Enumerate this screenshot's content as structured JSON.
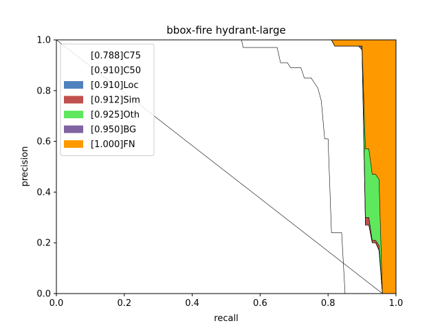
{
  "chart_data": {
    "type": "area",
    "title": "bbox-fire hydrant-large",
    "xlabel": "recall",
    "ylabel": "precision",
    "xlim": [
      0,
      1
    ],
    "ylim": [
      0,
      1
    ],
    "xticks": [
      "0.0",
      "0.2",
      "0.4",
      "0.6",
      "0.8",
      "1.0"
    ],
    "yticks": [
      "0.0",
      "0.2",
      "0.4",
      "0.6",
      "0.8",
      "1.0"
    ],
    "grid": false,
    "legend_position": "top-left",
    "legend": [
      {
        "label": "[0.788]C75",
        "color": "#ffffff",
        "swatch": false
      },
      {
        "label": "[0.910]C50",
        "color": "#ffffff",
        "swatch": false
      },
      {
        "label": "[0.910]Loc",
        "color": "#4f81bd",
        "swatch": true
      },
      {
        "label": "[0.912]Sim",
        "color": "#c0504d",
        "swatch": true
      },
      {
        "label": "[0.925]Oth",
        "color": "#5ee85e",
        "swatch": true
      },
      {
        "label": "[0.950]BG",
        "color": "#8064a2",
        "swatch": true
      },
      {
        "label": "[1.000]FN",
        "color": "#ff9900",
        "swatch": true
      }
    ],
    "series": [
      {
        "name": "[0.788]C75",
        "x": [
          0.0,
          0.545,
          0.55,
          0.65,
          0.66,
          0.68,
          0.69,
          0.72,
          0.73,
          0.75,
          0.76,
          0.77,
          0.78,
          0.79,
          0.8,
          0.81,
          0.82,
          0.84,
          0.85,
          0.85
        ],
        "y": [
          1.0,
          1.0,
          0.97,
          0.97,
          0.91,
          0.91,
          0.89,
          0.89,
          0.85,
          0.85,
          0.83,
          0.81,
          0.76,
          0.61,
          0.61,
          0.24,
          0.24,
          0.24,
          0.0,
          0.0
        ]
      },
      {
        "name": "[0.910]C50",
        "x": [
          0.0,
          0.81,
          0.82,
          0.88,
          0.89,
          0.9,
          0.91,
          0.92,
          0.93,
          0.94,
          0.95,
          0.96
        ],
        "y": [
          1.0,
          1.0,
          0.975,
          0.975,
          0.975,
          0.96,
          0.27,
          0.27,
          0.2,
          0.2,
          0.17,
          0.0
        ]
      },
      {
        "name": "[0.910]Loc",
        "x": [
          0.0,
          0.81,
          0.82,
          0.88,
          0.89,
          0.9,
          0.91,
          0.92,
          0.93,
          0.94,
          0.95,
          0.96
        ],
        "y": [
          1.0,
          1.0,
          0.975,
          0.975,
          0.975,
          0.975,
          0.27,
          0.27,
          0.2,
          0.2,
          0.17,
          0.0
        ]
      },
      {
        "name": "[0.912]Sim",
        "x": [
          0.0,
          0.81,
          0.82,
          0.88,
          0.89,
          0.9,
          0.91,
          0.92,
          0.93,
          0.94,
          0.95,
          0.96
        ],
        "y": [
          1.0,
          1.0,
          0.975,
          0.975,
          0.975,
          0.975,
          0.3,
          0.3,
          0.21,
          0.21,
          0.19,
          0.0
        ]
      },
      {
        "name": "[0.925]Oth",
        "x": [
          0.0,
          0.81,
          0.82,
          0.88,
          0.89,
          0.9,
          0.91,
          0.92,
          0.93,
          0.94,
          0.95,
          0.96
        ],
        "y": [
          1.0,
          1.0,
          0.975,
          0.975,
          0.975,
          0.975,
          0.57,
          0.57,
          0.47,
          0.47,
          0.45,
          0.0
        ]
      },
      {
        "name": "[0.950]BG",
        "x": [
          0.0,
          0.96
        ],
        "y": [
          1.0,
          0.0
        ]
      },
      {
        "name": "[1.000]FN",
        "x": [
          0.0,
          1.0
        ],
        "y": [
          1.0,
          1.0
        ]
      }
    ]
  }
}
